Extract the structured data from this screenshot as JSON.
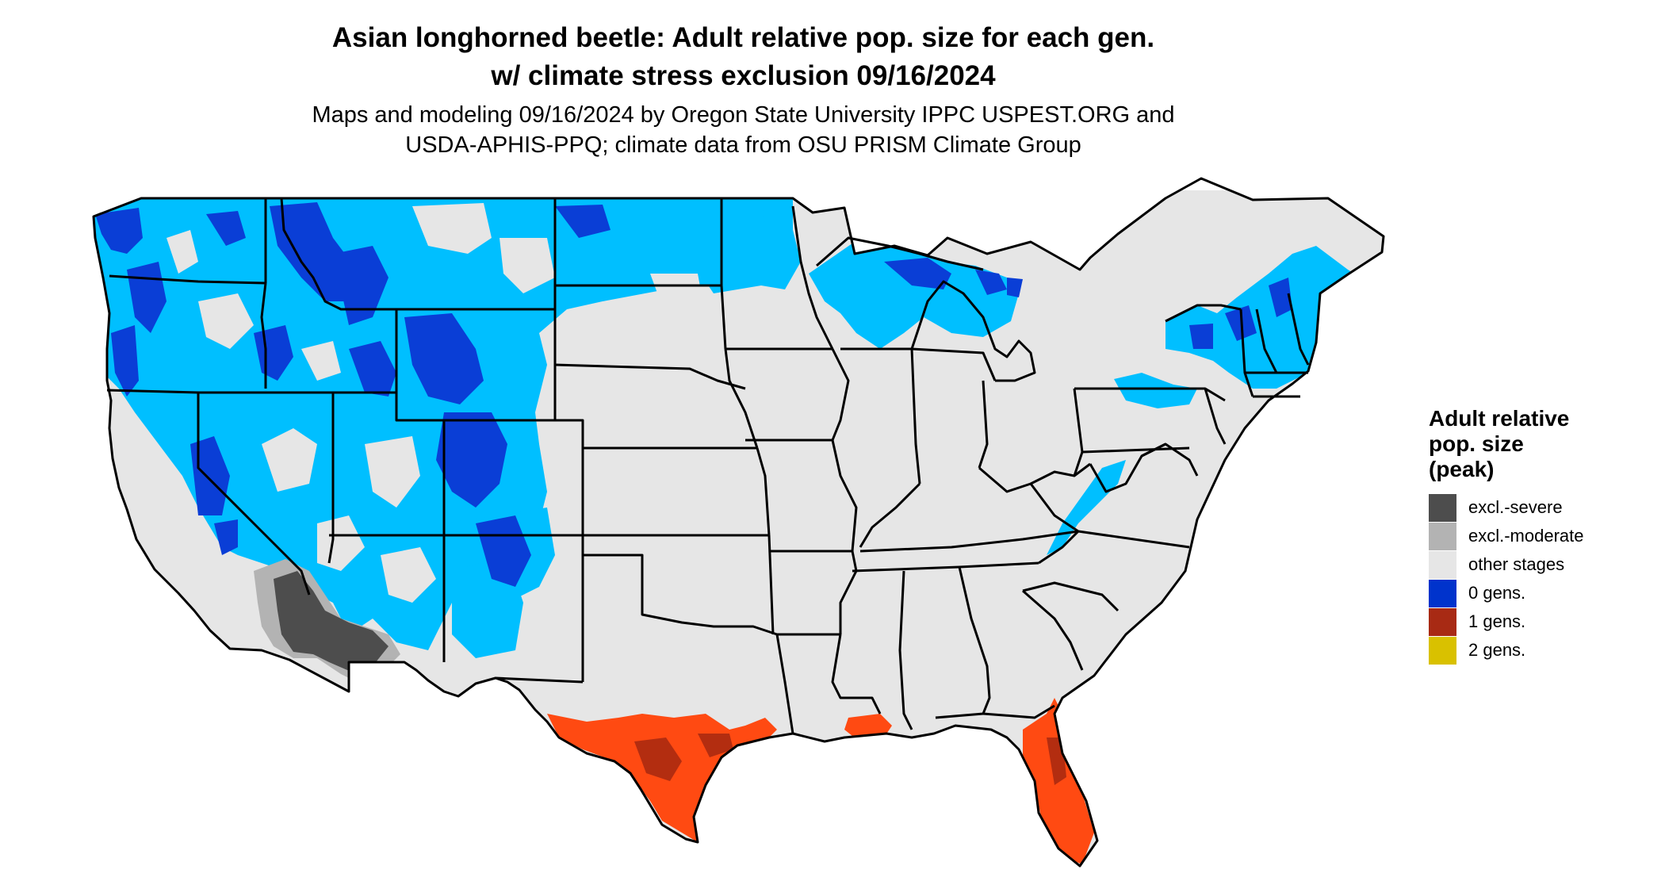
{
  "title_line1": "Asian longhorned beetle: Adult relative pop. size for each gen.",
  "title_line2": "w/ climate stress exclusion 09/16/2024",
  "subtitle_line1": "Maps and modeling 09/16/2024 by Oregon State University IPPC USPEST.ORG and",
  "subtitle_line2": "USDA-APHIS-PPQ; climate data from OSU PRISM Climate Group",
  "legend": {
    "title_lines": [
      "Adult relative",
      "pop. size",
      "(peak)"
    ],
    "items": [
      {
        "label": "excl.-severe",
        "color": "#4d4d4d"
      },
      {
        "label": "excl.-moderate",
        "color": "#b3b3b3"
      },
      {
        "label": "other stages",
        "color": "#e6e6e6"
      },
      {
        "label": "0 gens.",
        "color": "#0033cc"
      },
      {
        "label": "1 gens.",
        "color": "#a82a14"
      },
      {
        "label": "2 gens.",
        "color": "#d9c100"
      }
    ]
  },
  "map_colors": {
    "land": "#e6e6e6",
    "zero_gen_light": "#00bfff",
    "zero_gen_dark": "#0a3ed6",
    "one_gen_light": "#ff4a12",
    "one_gen_dark": "#b32d10",
    "excl_severe": "#4d4d4d",
    "excl_moderate": "#b3b3b3",
    "border": "#000000"
  }
}
